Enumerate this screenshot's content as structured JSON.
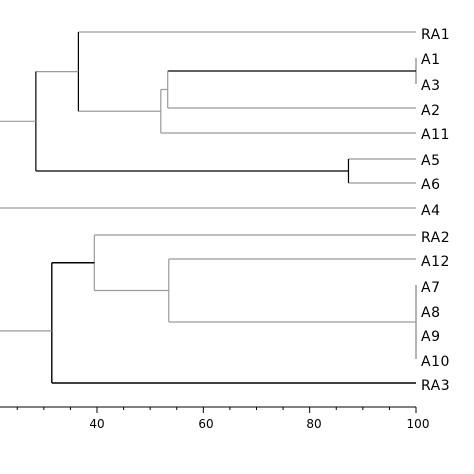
{
  "leaves": [
    {
      "label": "RA1"
    },
    {
      "label": "A1"
    },
    {
      "label": "A3"
    },
    {
      "label": "A2"
    },
    {
      "label": "A11"
    },
    {
      "label": "A5"
    },
    {
      "label": "A6"
    },
    {
      "label": "A4"
    },
    {
      "label": "RA2"
    },
    {
      "label": "A12"
    },
    {
      "label": "A7"
    },
    {
      "label": "A8"
    },
    {
      "label": "A9"
    },
    {
      "label": "A10"
    },
    {
      "label": "RA3"
    }
  ],
  "axis": {
    "min": 20,
    "max": 100,
    "major_ticks": [
      {
        "value": 40,
        "label": "40"
      },
      {
        "value": 60,
        "label": "60"
      },
      {
        "value": 80,
        "label": "80"
      },
      {
        "value": 100,
        "label": "100"
      }
    ],
    "minor_ticks": [
      25,
      30,
      35,
      45,
      50,
      55,
      65,
      70,
      75,
      85,
      90,
      95
    ]
  },
  "clusters": [
    {
      "name": "A1-A3",
      "similarity": 100,
      "children": [
        "A1",
        "A3"
      ]
    },
    {
      "name": "A1-A3-A2",
      "similarity": 53.3,
      "children": [
        "A1-A3",
        "A2"
      ]
    },
    {
      "name": "A1-A3-A2-A11",
      "similarity": 52,
      "children": [
        "A1-A3-A2",
        "A11"
      ]
    },
    {
      "name": "RA1-group",
      "similarity": 36.5,
      "children": [
        "RA1",
        "A1-A3-A2-A11"
      ]
    },
    {
      "name": "A5-A6",
      "similarity": 87.3,
      "children": [
        "A5",
        "A6"
      ]
    },
    {
      "name": "upper",
      "similarity": 28.5,
      "children": [
        "RA1-group",
        "A5-A6"
      ]
    },
    {
      "name": "A7-A10",
      "similarity": 100,
      "children": [
        "A7",
        "A8",
        "A9",
        "A10"
      ]
    },
    {
      "name": "A12-A7-A10",
      "similarity": 53.5,
      "children": [
        "A12",
        "A7-A10"
      ]
    },
    {
      "name": "RA2-group",
      "similarity": 39.5,
      "children": [
        "RA2",
        "A12-A7-A10"
      ]
    },
    {
      "name": "RA3-group",
      "similarity": 31.5,
      "children": [
        "RA2-group",
        "RA3"
      ]
    }
  ],
  "colors": {
    "line": "#9a9a9a",
    "dark_line": "#000000"
  }
}
